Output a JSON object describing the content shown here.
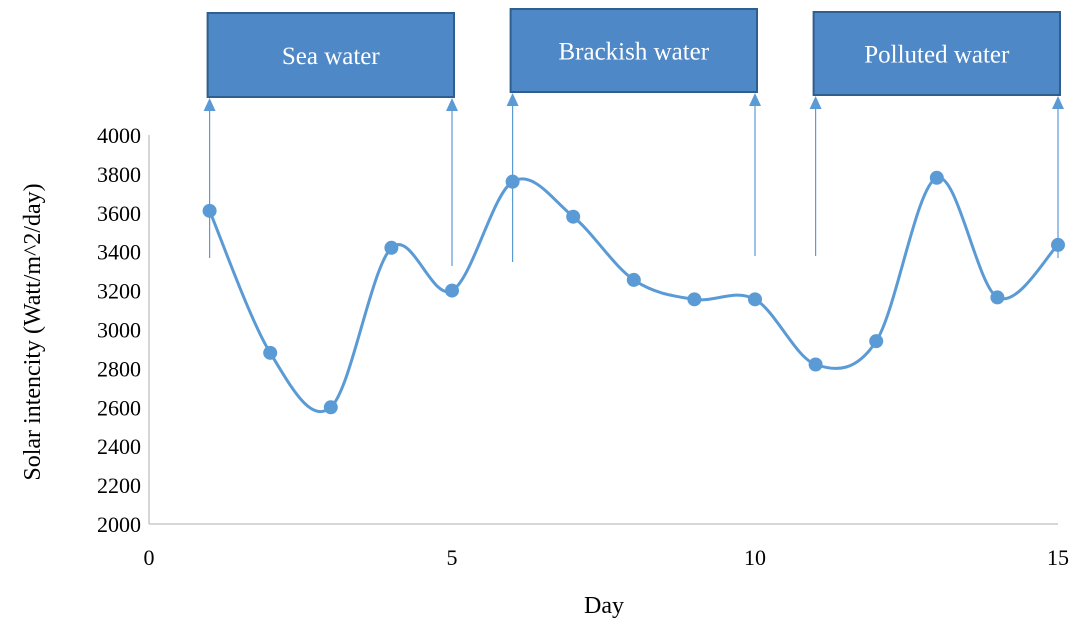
{
  "chart_data": {
    "type": "line",
    "xlabel": "Day",
    "ylabel": "Solar intencity (Watt/m^2/day)",
    "xlim": [
      0,
      15
    ],
    "ylim": [
      2000,
      4000
    ],
    "x_ticks": [
      "0",
      "5",
      "10",
      "15"
    ],
    "y_ticks": [
      "2000",
      "2200",
      "2400",
      "2600",
      "2800",
      "3000",
      "3200",
      "3400",
      "3600",
      "3800",
      "4000"
    ],
    "grid": false,
    "smooth": true,
    "series": [
      {
        "x": [
          1,
          2,
          3,
          4,
          5,
          6,
          7,
          8,
          9,
          10,
          11,
          12,
          13,
          14,
          15
        ],
        "y": [
          3610,
          2880,
          2600,
          3420,
          3200,
          3760,
          3580,
          3255,
          3155,
          3155,
          2820,
          2940,
          3780,
          3165,
          3435
        ]
      }
    ],
    "annotations": [
      {
        "label": "Sea water",
        "x_start": 1,
        "x_end": 5
      },
      {
        "label": "Brackish water",
        "x_start": 6,
        "x_end": 10
      },
      {
        "label": "Polluted water",
        "x_start": 11,
        "x_end": 15
      }
    ],
    "colors": {
      "line": "#5b9bd5",
      "marker": "#5b9bd5",
      "box_fill": "#4f88c6",
      "box_border": "#2e5f8e",
      "axis": "#bfbfbf"
    }
  }
}
